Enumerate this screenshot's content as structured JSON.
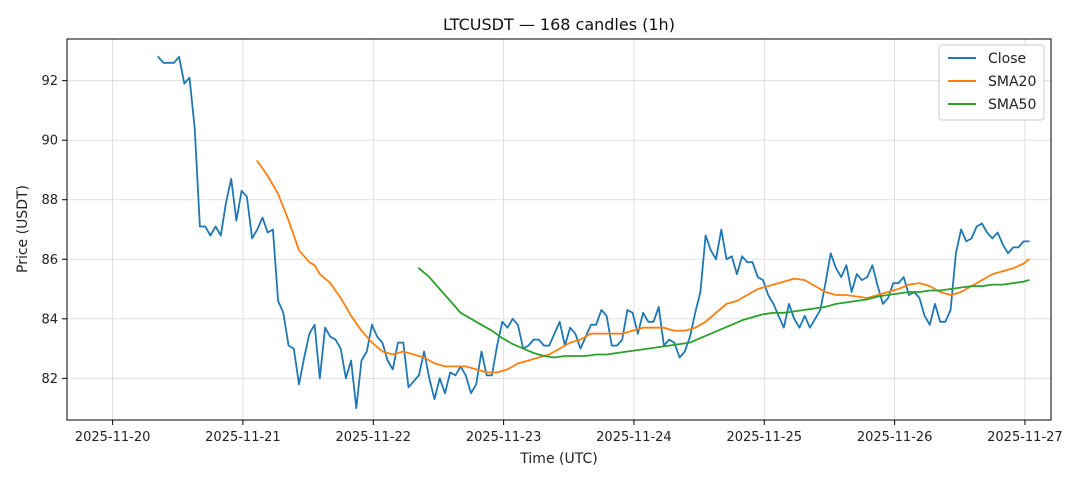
{
  "chart_data": {
    "type": "line",
    "title": "LTCUSDT — 168 candles (1h)",
    "xlabel": "Time (UTC)",
    "ylabel": "Price (USDT)",
    "x_ticks": [
      "2025-11-20",
      "2025-11-21",
      "2025-11-22",
      "2025-11-23",
      "2025-11-24",
      "2025-11-25",
      "2025-11-26",
      "2025-11-27"
    ],
    "y_ticks": [
      82,
      84,
      86,
      88,
      90,
      92
    ],
    "xlim": [
      -0.35,
      7.2
    ],
    "ylim": [
      80.6,
      93.4
    ],
    "grid": true,
    "legend_position": "top-right",
    "series": [
      {
        "name": "Close",
        "color": "#1f77b4",
        "points": [
          [
            0.35,
            92.8
          ],
          [
            0.39,
            92.6
          ],
          [
            0.43,
            92.6
          ],
          [
            0.47,
            92.6
          ],
          [
            0.51,
            92.8
          ],
          [
            0.55,
            91.9
          ],
          [
            0.59,
            92.1
          ],
          [
            0.63,
            90.4
          ],
          [
            0.67,
            87.1
          ],
          [
            0.71,
            87.1
          ],
          [
            0.75,
            86.8
          ],
          [
            0.79,
            87.1
          ],
          [
            0.83,
            86.8
          ],
          [
            0.87,
            87.9
          ],
          [
            0.91,
            88.7
          ],
          [
            0.95,
            87.3
          ],
          [
            0.99,
            88.3
          ],
          [
            1.03,
            88.1
          ],
          [
            1.07,
            86.7
          ],
          [
            1.11,
            87.0
          ],
          [
            1.15,
            87.4
          ],
          [
            1.19,
            86.9
          ],
          [
            1.23,
            87.0
          ],
          [
            1.27,
            84.6
          ],
          [
            1.31,
            84.2
          ],
          [
            1.35,
            83.1
          ],
          [
            1.39,
            83.0
          ],
          [
            1.43,
            81.8
          ],
          [
            1.47,
            82.7
          ],
          [
            1.51,
            83.5
          ],
          [
            1.55,
            83.8
          ],
          [
            1.59,
            82.0
          ],
          [
            1.63,
            83.7
          ],
          [
            1.67,
            83.4
          ],
          [
            1.71,
            83.3
          ],
          [
            1.75,
            83.0
          ],
          [
            1.79,
            82.0
          ],
          [
            1.83,
            82.6
          ],
          [
            1.87,
            81.0
          ],
          [
            1.91,
            82.6
          ],
          [
            1.95,
            82.9
          ],
          [
            1.99,
            83.8
          ],
          [
            2.03,
            83.4
          ],
          [
            2.07,
            83.2
          ],
          [
            2.11,
            82.6
          ],
          [
            2.15,
            82.3
          ],
          [
            2.19,
            83.2
          ],
          [
            2.23,
            83.2
          ],
          [
            2.27,
            81.7
          ],
          [
            2.31,
            81.9
          ],
          [
            2.35,
            82.1
          ],
          [
            2.39,
            82.9
          ],
          [
            2.43,
            82.0
          ],
          [
            2.47,
            81.3
          ],
          [
            2.51,
            82.0
          ],
          [
            2.55,
            81.5
          ],
          [
            2.59,
            82.2
          ],
          [
            2.63,
            82.1
          ],
          [
            2.67,
            82.4
          ],
          [
            2.71,
            82.1
          ],
          [
            2.75,
            81.5
          ],
          [
            2.79,
            81.8
          ],
          [
            2.83,
            82.9
          ],
          [
            2.87,
            82.1
          ],
          [
            2.91,
            82.1
          ],
          [
            2.95,
            83.1
          ],
          [
            2.99,
            83.9
          ],
          [
            3.03,
            83.7
          ],
          [
            3.07,
            84.0
          ],
          [
            3.11,
            83.8
          ],
          [
            3.15,
            83.0
          ],
          [
            3.19,
            83.1
          ],
          [
            3.23,
            83.3
          ],
          [
            3.27,
            83.3
          ],
          [
            3.31,
            83.1
          ],
          [
            3.35,
            83.1
          ],
          [
            3.39,
            83.5
          ],
          [
            3.43,
            83.9
          ],
          [
            3.47,
            83.1
          ],
          [
            3.51,
            83.7
          ],
          [
            3.55,
            83.5
          ],
          [
            3.59,
            83.0
          ],
          [
            3.63,
            83.4
          ],
          [
            3.67,
            83.8
          ],
          [
            3.71,
            83.8
          ],
          [
            3.75,
            84.3
          ],
          [
            3.79,
            84.1
          ],
          [
            3.83,
            83.1
          ],
          [
            3.87,
            83.1
          ],
          [
            3.91,
            83.3
          ],
          [
            3.95,
            84.3
          ],
          [
            3.99,
            84.2
          ],
          [
            4.03,
            83.5
          ],
          [
            4.07,
            84.2
          ],
          [
            4.11,
            83.9
          ],
          [
            4.15,
            83.9
          ],
          [
            4.19,
            84.4
          ],
          [
            4.23,
            83.1
          ],
          [
            4.27,
            83.3
          ],
          [
            4.31,
            83.2
          ],
          [
            4.35,
            82.7
          ],
          [
            4.39,
            82.9
          ],
          [
            4.43,
            83.4
          ],
          [
            4.47,
            84.2
          ],
          [
            4.51,
            84.9
          ],
          [
            4.55,
            86.8
          ],
          [
            4.59,
            86.3
          ],
          [
            4.63,
            86.0
          ],
          [
            4.67,
            87.0
          ],
          [
            4.71,
            86.0
          ],
          [
            4.75,
            86.1
          ],
          [
            4.79,
            85.5
          ],
          [
            4.83,
            86.1
          ],
          [
            4.87,
            85.9
          ],
          [
            4.91,
            85.9
          ],
          [
            4.95,
            85.4
          ],
          [
            4.99,
            85.3
          ],
          [
            5.03,
            84.8
          ],
          [
            5.07,
            84.5
          ],
          [
            5.11,
            84.1
          ],
          [
            5.15,
            83.7
          ],
          [
            5.19,
            84.5
          ],
          [
            5.23,
            84.0
          ],
          [
            5.27,
            83.7
          ],
          [
            5.31,
            84.1
          ],
          [
            5.35,
            83.7
          ],
          [
            5.39,
            84.0
          ],
          [
            5.43,
            84.3
          ],
          [
            5.47,
            85.2
          ],
          [
            5.51,
            86.2
          ],
          [
            5.55,
            85.7
          ],
          [
            5.59,
            85.4
          ],
          [
            5.63,
            85.8
          ],
          [
            5.67,
            84.9
          ],
          [
            5.71,
            85.5
          ],
          [
            5.75,
            85.3
          ],
          [
            5.79,
            85.4
          ],
          [
            5.83,
            85.8
          ],
          [
            5.87,
            85.1
          ],
          [
            5.91,
            84.5
          ],
          [
            5.95,
            84.7
          ],
          [
            5.99,
            85.2
          ],
          [
            6.03,
            85.2
          ],
          [
            6.07,
            85.4
          ],
          [
            6.11,
            84.8
          ],
          [
            6.15,
            84.9
          ],
          [
            6.19,
            84.7
          ],
          [
            6.23,
            84.1
          ],
          [
            6.27,
            83.8
          ],
          [
            6.31,
            84.5
          ],
          [
            6.35,
            83.9
          ],
          [
            6.39,
            83.9
          ],
          [
            6.43,
            84.3
          ],
          [
            6.47,
            86.2
          ],
          [
            6.51,
            87.0
          ],
          [
            6.55,
            86.6
          ],
          [
            6.59,
            86.7
          ],
          [
            6.63,
            87.1
          ],
          [
            6.67,
            87.2
          ],
          [
            6.71,
            86.9
          ],
          [
            6.75,
            86.7
          ],
          [
            6.79,
            86.9
          ],
          [
            6.83,
            86.5
          ],
          [
            6.87,
            86.2
          ],
          [
            6.91,
            86.4
          ],
          [
            6.95,
            86.4
          ],
          [
            6.99,
            86.6
          ],
          [
            7.03,
            86.6
          ]
        ]
      },
      {
        "name": "SMA20",
        "color": "#ff7f0e",
        "points": [
          [
            1.11,
            89.3
          ],
          [
            1.19,
            88.8
          ],
          [
            1.27,
            88.2
          ],
          [
            1.35,
            87.3
          ],
          [
            1.43,
            86.3
          ],
          [
            1.51,
            85.9
          ],
          [
            1.55,
            85.8
          ],
          [
            1.59,
            85.5
          ],
          [
            1.67,
            85.2
          ],
          [
            1.75,
            84.7
          ],
          [
            1.83,
            84.1
          ],
          [
            1.91,
            83.6
          ],
          [
            1.99,
            83.2
          ],
          [
            2.07,
            82.9
          ],
          [
            2.15,
            82.8
          ],
          [
            2.23,
            82.9
          ],
          [
            2.31,
            82.8
          ],
          [
            2.39,
            82.7
          ],
          [
            2.47,
            82.5
          ],
          [
            2.55,
            82.4
          ],
          [
            2.63,
            82.4
          ],
          [
            2.71,
            82.4
          ],
          [
            2.79,
            82.3
          ],
          [
            2.87,
            82.2
          ],
          [
            2.95,
            82.2
          ],
          [
            3.03,
            82.3
          ],
          [
            3.11,
            82.5
          ],
          [
            3.19,
            82.6
          ],
          [
            3.27,
            82.7
          ],
          [
            3.35,
            82.8
          ],
          [
            3.43,
            83.0
          ],
          [
            3.51,
            83.2
          ],
          [
            3.59,
            83.3
          ],
          [
            3.67,
            83.5
          ],
          [
            3.75,
            83.5
          ],
          [
            3.83,
            83.5
          ],
          [
            3.91,
            83.5
          ],
          [
            3.99,
            83.6
          ],
          [
            4.07,
            83.7
          ],
          [
            4.15,
            83.7
          ],
          [
            4.23,
            83.7
          ],
          [
            4.31,
            83.6
          ],
          [
            4.39,
            83.6
          ],
          [
            4.47,
            83.7
          ],
          [
            4.55,
            83.9
          ],
          [
            4.63,
            84.2
          ],
          [
            4.71,
            84.5
          ],
          [
            4.79,
            84.6
          ],
          [
            4.87,
            84.8
          ],
          [
            4.95,
            85.0
          ],
          [
            5.03,
            85.1
          ],
          [
            5.11,
            85.2
          ],
          [
            5.19,
            85.3
          ],
          [
            5.23,
            85.35
          ],
          [
            5.31,
            85.3
          ],
          [
            5.39,
            85.1
          ],
          [
            5.47,
            84.9
          ],
          [
            5.55,
            84.8
          ],
          [
            5.63,
            84.8
          ],
          [
            5.71,
            84.75
          ],
          [
            5.79,
            84.7
          ],
          [
            5.87,
            84.8
          ],
          [
            5.95,
            84.9
          ],
          [
            6.03,
            85.0
          ],
          [
            6.11,
            85.15
          ],
          [
            6.19,
            85.2
          ],
          [
            6.27,
            85.1
          ],
          [
            6.35,
            84.9
          ],
          [
            6.43,
            84.8
          ],
          [
            6.51,
            84.9
          ],
          [
            6.59,
            85.1
          ],
          [
            6.67,
            85.3
          ],
          [
            6.75,
            85.5
          ],
          [
            6.83,
            85.6
          ],
          [
            6.91,
            85.7
          ],
          [
            6.99,
            85.85
          ],
          [
            7.03,
            86.0
          ]
        ]
      },
      {
        "name": "SMA50",
        "color": "#2ca02c",
        "points": [
          [
            2.35,
            85.7
          ],
          [
            2.43,
            85.4
          ],
          [
            2.51,
            85.0
          ],
          [
            2.59,
            84.6
          ],
          [
            2.67,
            84.2
          ],
          [
            2.75,
            84.0
          ],
          [
            2.83,
            83.8
          ],
          [
            2.91,
            83.6
          ],
          [
            2.99,
            83.35
          ],
          [
            3.07,
            83.15
          ],
          [
            3.15,
            83.0
          ],
          [
            3.23,
            82.85
          ],
          [
            3.31,
            82.75
          ],
          [
            3.39,
            82.7
          ],
          [
            3.47,
            82.75
          ],
          [
            3.55,
            82.75
          ],
          [
            3.63,
            82.75
          ],
          [
            3.71,
            82.8
          ],
          [
            3.79,
            82.8
          ],
          [
            3.87,
            82.85
          ],
          [
            3.95,
            82.9
          ],
          [
            4.03,
            82.95
          ],
          [
            4.11,
            83.0
          ],
          [
            4.19,
            83.05
          ],
          [
            4.27,
            83.1
          ],
          [
            4.35,
            83.15
          ],
          [
            4.43,
            83.2
          ],
          [
            4.51,
            83.35
          ],
          [
            4.59,
            83.5
          ],
          [
            4.67,
            83.65
          ],
          [
            4.75,
            83.8
          ],
          [
            4.83,
            83.95
          ],
          [
            4.91,
            84.05
          ],
          [
            4.99,
            84.15
          ],
          [
            5.07,
            84.2
          ],
          [
            5.15,
            84.2
          ],
          [
            5.23,
            84.25
          ],
          [
            5.31,
            84.3
          ],
          [
            5.39,
            84.35
          ],
          [
            5.47,
            84.4
          ],
          [
            5.55,
            84.5
          ],
          [
            5.63,
            84.55
          ],
          [
            5.71,
            84.6
          ],
          [
            5.79,
            84.65
          ],
          [
            5.87,
            84.75
          ],
          [
            5.95,
            84.8
          ],
          [
            6.03,
            84.85
          ],
          [
            6.11,
            84.9
          ],
          [
            6.19,
            84.9
          ],
          [
            6.27,
            84.95
          ],
          [
            6.35,
            84.95
          ],
          [
            6.43,
            85.0
          ],
          [
            6.51,
            85.05
          ],
          [
            6.59,
            85.1
          ],
          [
            6.67,
            85.1
          ],
          [
            6.75,
            85.15
          ],
          [
            6.83,
            85.15
          ],
          [
            6.91,
            85.2
          ],
          [
            6.99,
            85.25
          ],
          [
            7.03,
            85.3
          ]
        ]
      }
    ]
  }
}
